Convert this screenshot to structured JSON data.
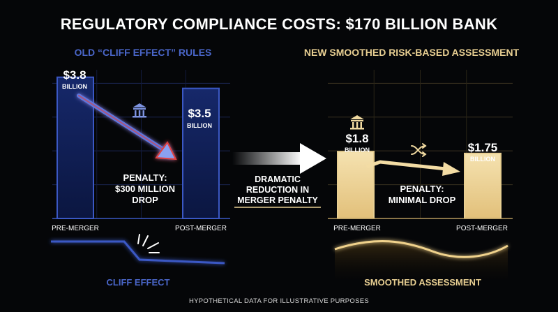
{
  "title": "REGULATORY COMPLIANCE COSTS: $170 BILLION BANK",
  "panels": {
    "left": {
      "title": "OLD “CLIFF EFFECT” RULES",
      "pre_value": "$3.8",
      "pre_unit": "BILLION",
      "post_value": "$3.5",
      "post_unit": "BILLION",
      "penalty": [
        "PENALTY:",
        "$300 MILLION",
        "DROP"
      ],
      "footer": "CLIFF EFFECT"
    },
    "right": {
      "title": "NEW SMOOTHED RISK-BASED ASSESSMENT",
      "pre_value": "$1.8",
      "pre_unit": "BILLION",
      "post_value": "$1.75",
      "post_unit": "BILLION",
      "penalty": [
        "PENALTY:",
        "MINIMAL DROP"
      ],
      "footer": "SMOOTHED ASSESSMENT"
    }
  },
  "center_note": [
    "DRAMATIC",
    "REDUCTION IN",
    "MERGER PENALTY"
  ],
  "note": "HYPOTHETICAL DATA FOR ILLUSTRATIVE PURPOSES",
  "chart_data": [
    {
      "type": "bar",
      "title": "OLD “CLIFF EFFECT” RULES",
      "categories": [
        "PRE-MERGER",
        "POST-MERGER"
      ],
      "values": [
        3.8,
        3.5
      ],
      "ylim": [
        0,
        4
      ],
      "grid": true
    },
    {
      "type": "bar",
      "title": "NEW SMOOTHED RISK-BASED ASSESSMENT",
      "categories": [
        "PRE-MERGER",
        "POST-MERGER"
      ],
      "values": [
        1.8,
        1.75
      ],
      "ylim": [
        0,
        4
      ],
      "grid": true
    }
  ],
  "colors": {
    "old": "#3b58c4",
    "old_fill": "#0d1a44",
    "new": "#e8cf92",
    "new_fill": "#f2dca8",
    "penalty_arrow": "#e04040",
    "background": "#050608"
  },
  "icons": {
    "left_bank": "bank-icon",
    "right_bank": "bank-icon",
    "shuffle": "shuffle-icon",
    "break": "crack-icon"
  }
}
